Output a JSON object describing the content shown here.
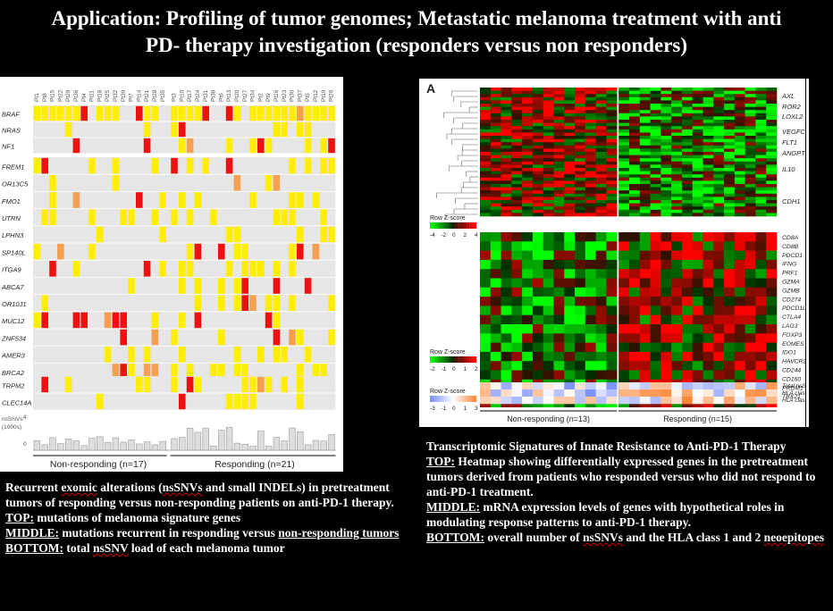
{
  "title": {
    "line1": "Application: Profiling of tumor genomes; Metastatic melanoma treatment with anti",
    "line2": "PD-   therapy investigation (responders versus non responders)"
  },
  "left_figure": {
    "genes_top": [
      "BRAF",
      "NRAS",
      "NF1"
    ],
    "genes_mid": [
      "FREM1",
      "OR13C5",
      "FMO1",
      "UTRN",
      "LPHN3",
      "SP140L",
      "ITGA9",
      "ABCA7",
      "OR10J1",
      "MUC12",
      "ZNF534",
      "AMER3",
      "BRCA2"
    ],
    "genes_bot": [
      "TRPM2",
      "CLEC14A"
    ],
    "nssnv_axis_label": "nsSNVs\n(1000s)",
    "nssnv_ticks": [
      "4",
      "0"
    ],
    "group_non": "Non-responding (n=17)",
    "group_resp": "Responding (n=21)",
    "colors": {
      "missense": "#ffee00",
      "truncating": "#ee1111",
      "other": "#f5a050",
      "empty": "#e6e6e6"
    }
  },
  "right_figure": {
    "panel_letter": "A",
    "top_genes": [
      "AXL",
      "ROR2",
      "LOXL2",
      "VEGFC",
      "FLT1",
      "ANGPT2",
      "IL10",
      "CDH1"
    ],
    "mid_genes": [
      "CD8A",
      "CD8B",
      "PDCD1",
      "IFNG",
      "PRF1",
      "GZMA",
      "GZMB",
      "CD274",
      "PDCD1LG2",
      "CTLA4",
      "LAG3",
      "FOXP3",
      "EOMES",
      "IDO1",
      "HAVCR2",
      "CD244",
      "CD160",
      "PRDM1",
      "TBX21"
    ],
    "bottom_labels": [
      "Total nsSNVs",
      "HLA class 1",
      "HLA class 2"
    ],
    "key1": {
      "label": "Row Z-score",
      "ticks": [
        "-4",
        "-2",
        "0",
        "2",
        "4"
      ]
    },
    "key2": {
      "label": "Row Z-score",
      "ticks": [
        "-2",
        "-1",
        "0",
        "1",
        "2"
      ]
    },
    "key3": {
      "label": "Row Z-score",
      "ticks": [
        "-3",
        "-1",
        "0",
        "1",
        "3"
      ]
    },
    "group_non": "Non-responding (n=13)",
    "group_resp": "Responding (n=15)"
  },
  "left_caption": {
    "intro_a": "Recurrent ",
    "intro_b": "exomic",
    "intro_c": " alterations (",
    "intro_d": "nsSNVs",
    "intro_e": " and small INDELs) in pretreatment tumors of responding versus non-responding patients on anti-PD-1 therapy.",
    "top_label": "TOP:",
    "top_text": " mutations of melanoma signature genes",
    "mid_label": "MIDDLE:",
    "mid_text_a": " mutations recurrent in responding versus ",
    "mid_text_b": "non-responding tumors",
    "bot_label": "BOTTOM:",
    "bot_text_a": " total ",
    "bot_text_b": "nsSNV",
    "bot_text_c": " load of each melanoma tumor"
  },
  "right_caption": {
    "heading": "Transcriptomic Signatures of Innate Resistance to Anti-PD-1 Therapy",
    "top_label": "TOP:",
    "top_text": " Heatmap showing differentially expressed genes in the pretreatment tumors derived from patients who responded versus who did not respond to anti-PD-1 treatment.",
    "mid_label": "MIDDLE:",
    "mid_text": " mRNA expression levels of genes with hypothetical roles in modulating response patterns to anti-PD-1 therapy.",
    "bot_label": "BOTTOM:",
    "bot_text_a": " overall number of ",
    "bot_text_b": "nsSNVs",
    "bot_text_c": " and the HLA class 1 and 2 ",
    "bot_text_d": "neoepitopes"
  }
}
